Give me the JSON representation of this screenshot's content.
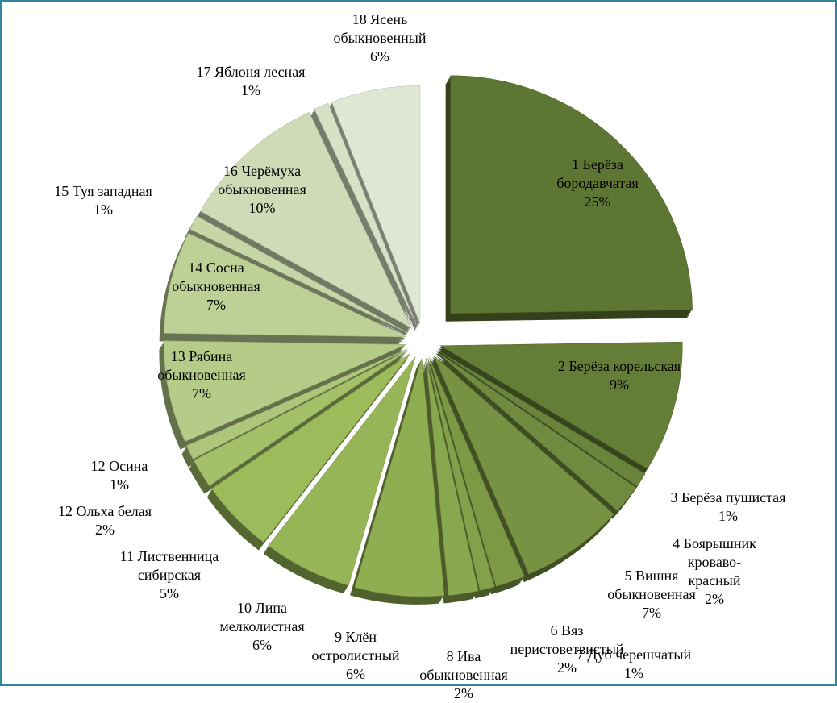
{
  "chart_data": {
    "type": "pie",
    "style": "3d-exploded",
    "title": "",
    "legend": "none",
    "slices": [
      {
        "label": "1 Берёза бородавчатая",
        "lines": [
          "1 Берёза",
          "бородавчатая"
        ],
        "value": 25,
        "pct": "25%"
      },
      {
        "label": "2 Берёза корельская",
        "lines": [
          "2 Берёза корельская"
        ],
        "value": 9,
        "pct": "9%"
      },
      {
        "label": "3 Берёза пушистая",
        "lines": [
          "3 Берёза пушистая"
        ],
        "value": 1,
        "pct": "1%"
      },
      {
        "label": "4 Боярышник кроваво-красный",
        "lines": [
          "4 Боярышник",
          "кроваво-",
          "красный"
        ],
        "value": 2,
        "pct": "2%"
      },
      {
        "label": "5 Вишня обыкновенная",
        "lines": [
          "5 Вишня",
          "обыкновенная"
        ],
        "value": 7,
        "pct": "7%"
      },
      {
        "label": "6 Вяз перистоветвистый",
        "lines": [
          "6 Вяз",
          "перистоветвистый"
        ],
        "value": 2,
        "pct": "2%"
      },
      {
        "label": "7 Дуб черешчатый",
        "lines": [
          "7 Дуб черешчатый"
        ],
        "value": 1,
        "pct": "1%"
      },
      {
        "label": "8 Ива обыкновенная",
        "lines": [
          "8 Ива",
          "обыкновенная"
        ],
        "value": 2,
        "pct": "2%"
      },
      {
        "label": "9 Клён остролистный",
        "lines": [
          "9 Клён",
          "остролистный"
        ],
        "value": 6,
        "pct": "6%"
      },
      {
        "label": "10 Липа мелколистная",
        "lines": [
          "10 Липа",
          "мелколистная"
        ],
        "value": 6,
        "pct": "6%"
      },
      {
        "label": "11 Лиственница сибирская",
        "lines": [
          "11 Лиственница",
          "сибирская"
        ],
        "value": 5,
        "pct": "5%"
      },
      {
        "label": "12 Ольха белая",
        "lines": [
          "12 Ольха белая"
        ],
        "value": 2,
        "pct": "2%"
      },
      {
        "label": "12 Осина",
        "lines": [
          "12 Осина"
        ],
        "value": 1,
        "pct": "1%"
      },
      {
        "label": "13 Рябина обыкновенная",
        "lines": [
          "13 Рябина",
          "обыкновенная"
        ],
        "value": 7,
        "pct": "7%"
      },
      {
        "label": "14 Сосна обыкновенная",
        "lines": [
          "14 Сосна",
          "обыкновенная"
        ],
        "value": 7,
        "pct": "7%"
      },
      {
        "label": "15 Туя западная",
        "lines": [
          "15 Туя западная"
        ],
        "value": 1,
        "pct": "1%"
      },
      {
        "label": "16 Черёмуха обыкновенная",
        "lines": [
          "16 Черёмуха",
          "обыкновенная"
        ],
        "value": 10,
        "pct": "10%"
      },
      {
        "label": "17 Яблоня лесная",
        "lines": [
          "17 Яблоня лесная"
        ],
        "value": 1,
        "pct": "1%"
      },
      {
        "label": "18 Ясень обыкновенный",
        "lines": [
          "18 Ясень",
          "обыкновенный"
        ],
        "value": 6,
        "pct": "6%"
      }
    ],
    "colors": {
      "dark": "#5e7633",
      "mid": "#9bbb59",
      "light": "#dfe6d4",
      "border": "#31849b"
    }
  }
}
